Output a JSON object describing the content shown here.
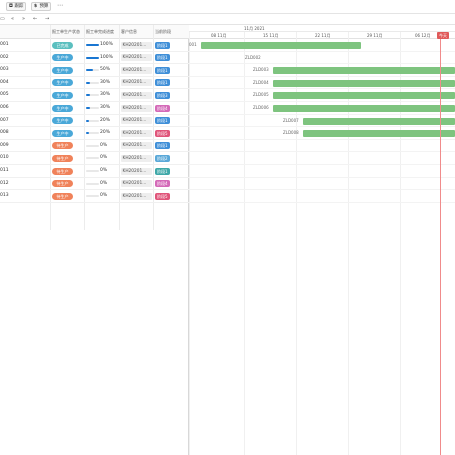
{
  "toolbar": {
    "btn1_icon": "◘",
    "btn1_label": "跟踪",
    "btn2_icon": "$",
    "btn2_label": "预算",
    "more": "⋯"
  },
  "subbar": {
    "items": [
      "▭",
      "«",
      "»",
      "←",
      "→"
    ]
  },
  "grid": {
    "headers": {
      "status": "报工单生产状态",
      "progress": "报工单完成进度",
      "customer": "客户信息",
      "stage": "当前阶段"
    },
    "rows": [
      {
        "id": "001",
        "status": "已完成",
        "status_color": "#5bbfbf",
        "progress": 100,
        "pct": "100%",
        "customer": "KH20201...",
        "stage": "阶段1",
        "stage_color": "#3f8fd8"
      },
      {
        "id": "002",
        "status": "生产中",
        "status_color": "#4aa8d8",
        "progress": 100,
        "pct": "100%",
        "customer": "KH20201...",
        "stage": "阶段1",
        "stage_color": "#3f8fd8"
      },
      {
        "id": "003",
        "status": "生产中",
        "status_color": "#4aa8d8",
        "progress": 50,
        "pct": "50%",
        "customer": "KH20201...",
        "stage": "阶段1",
        "stage_color": "#3f8fd8"
      },
      {
        "id": "004",
        "status": "生产中",
        "status_color": "#4aa8d8",
        "progress": 30,
        "pct": "30%",
        "customer": "KH20201...",
        "stage": "阶段1",
        "stage_color": "#3f8fd8"
      },
      {
        "id": "005",
        "status": "生产中",
        "status_color": "#4aa8d8",
        "progress": 30,
        "pct": "30%",
        "customer": "KH20201...",
        "stage": "阶段3",
        "stage_color": "#3f8fd8"
      },
      {
        "id": "006",
        "status": "生产中",
        "status_color": "#4aa8d8",
        "progress": 30,
        "pct": "30%",
        "customer": "KH20201...",
        "stage": "阶段4",
        "stage_color": "#d46ab8"
      },
      {
        "id": "007",
        "status": "生产中",
        "status_color": "#4aa8d8",
        "progress": 20,
        "pct": "20%",
        "customer": "KH20201...",
        "stage": "阶段1",
        "stage_color": "#3f8fd8"
      },
      {
        "id": "008",
        "status": "生产中",
        "status_color": "#4aa8d8",
        "progress": 20,
        "pct": "20%",
        "customer": "KH20201...",
        "stage": "阶段5",
        "stage_color": "#e0557a"
      },
      {
        "id": "009",
        "status": "待生产",
        "status_color": "#f0825a",
        "progress": 0,
        "pct": "0%",
        "customer": "KH20201...",
        "stage": "阶段1",
        "stage_color": "#3f8fd8"
      },
      {
        "id": "010",
        "status": "待生产",
        "status_color": "#f0825a",
        "progress": 0,
        "pct": "0%",
        "customer": "KH20201...",
        "stage": "阶段2",
        "stage_color": "#5aa8d8"
      },
      {
        "id": "011",
        "status": "待生产",
        "status_color": "#f0825a",
        "progress": 0,
        "pct": "0%",
        "customer": "KH20201...",
        "stage": "阶段1",
        "stage_color": "#3fa8a8"
      },
      {
        "id": "012",
        "status": "待生产",
        "status_color": "#f0825a",
        "progress": 0,
        "pct": "0%",
        "customer": "KH20201...",
        "stage": "阶段4",
        "stage_color": "#d46ab8"
      },
      {
        "id": "013",
        "status": "待生产",
        "status_color": "#f0825a",
        "progress": 0,
        "pct": "0%",
        "customer": "KH20201...",
        "stage": "阶段5",
        "stage_color": "#e0557a"
      }
    ]
  },
  "gantt": {
    "month": "11月 2021",
    "weeks": [
      "08 11月",
      "15 11月",
      "22 11月",
      "29 11月",
      "06 12月"
    ],
    "today": "今天",
    "bar_color": "#7ec47f",
    "rows": [
      {
        "label": "001"
      },
      {
        "label": "ZLD002"
      },
      {
        "label": "ZLD003"
      },
      {
        "label": "ZLD004"
      },
      {
        "label": "ZLD005"
      },
      {
        "label": "ZLD006"
      },
      {
        "label": "ZLD007"
      },
      {
        "label": "ZLD008"
      },
      {
        "label": ""
      },
      {
        "label": ""
      },
      {
        "label": ""
      },
      {
        "label": ""
      },
      {
        "label": ""
      }
    ]
  }
}
